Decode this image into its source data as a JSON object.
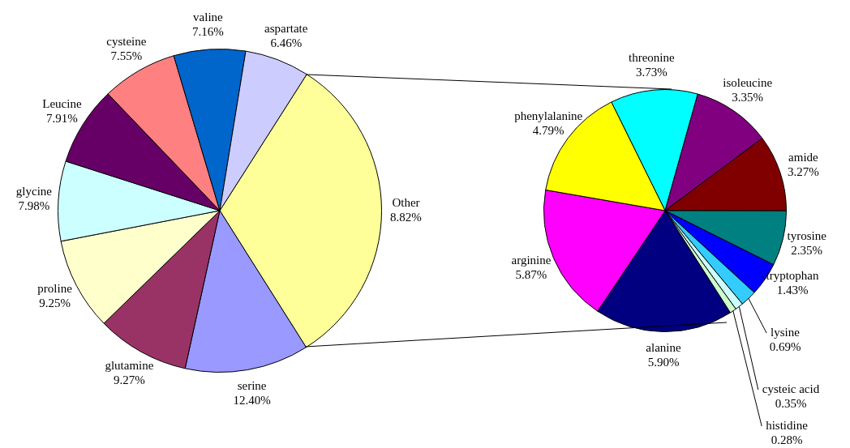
{
  "chart_data": [
    {
      "type": "pie",
      "categories": [
        "Other",
        "serine",
        "glutamine",
        "proline",
        "glycine",
        "Leucine",
        "cysteine",
        "valine",
        "aspartate"
      ],
      "values": [
        32.01,
        12.4,
        9.27,
        9.25,
        7.98,
        7.91,
        7.55,
        7.16,
        6.46
      ],
      "colors": [
        "#ffff99",
        "#9999ff",
        "#993366",
        "#ffffcc",
        "#ccffff",
        "#660066",
        "#ff8080",
        "#0066cc",
        "#ccccff"
      ],
      "annotations": [
        "8.82%"
      ],
      "value_labels": [
        null,
        "12.40%",
        "9.27%",
        "9.25%",
        "7.98%",
        "7.91%",
        "7.55%",
        "7.16%",
        "6.46%"
      ]
    },
    {
      "type": "pie",
      "categories": [
        "threonine",
        "isoleucine",
        "amide",
        "tyrosine",
        "tryptophan",
        "lysine",
        "cysteic acid",
        "histidine",
        "alanine",
        "arginine",
        "phenylalanine"
      ],
      "values": [
        3.73,
        3.35,
        3.27,
        2.35,
        1.43,
        0.69,
        0.35,
        0.28,
        5.9,
        5.87,
        4.79
      ],
      "colors": [
        "#00ffff",
        "#800080",
        "#800000",
        "#008080",
        "#0000ff",
        "#33ccff",
        "#ccffff",
        "#ccffcc",
        "#000080",
        "#ff00ff",
        "#ffff00"
      ],
      "value_labels": [
        "3.73%",
        "3.35%",
        "3.27%",
        "2.35%",
        "1.43%",
        "0.69%",
        "0.35%",
        "0.28%",
        "5.90%",
        "5.87%",
        "4.79%"
      ]
    }
  ]
}
